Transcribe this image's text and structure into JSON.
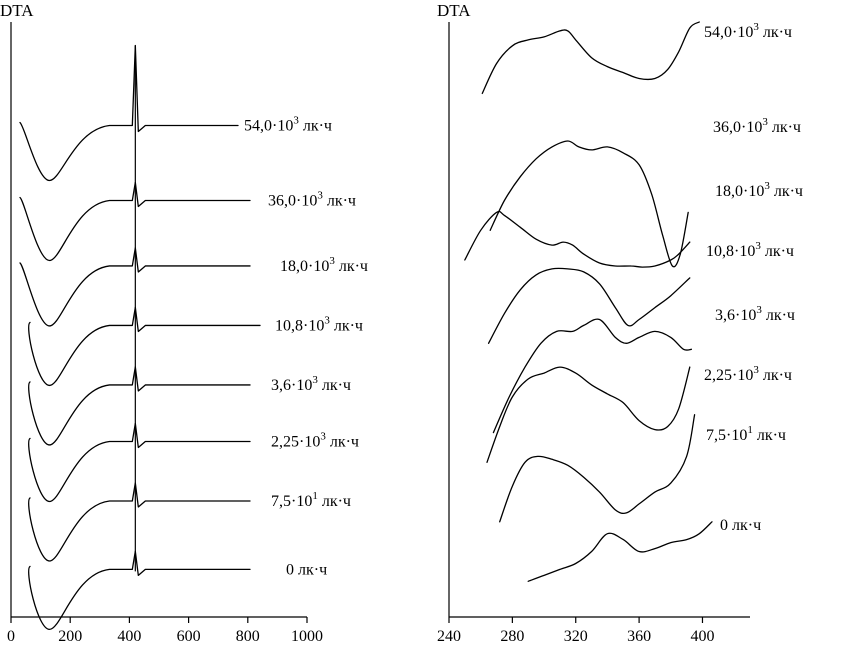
{
  "chart_data": [
    {
      "type": "line",
      "ylabel": "DTA",
      "xlabel": "",
      "xlim": [
        0,
        1000
      ],
      "xticks": [
        "0",
        "200",
        "400",
        "600",
        "800",
        "1000"
      ],
      "xtick_values": [
        0,
        200,
        400,
        600,
        800,
        1000
      ],
      "series": [
        {
          "label_main": "54,0·10",
          "exp": "3",
          "unit": " лк·ч",
          "baseline": 0.826
        },
        {
          "label_main": "36,0·10",
          "exp": "3",
          "unit": " лк·ч",
          "baseline": 0.7
        },
        {
          "label_main": "18,0·10",
          "exp": "3",
          "unit": " лк·ч",
          "baseline": 0.59
        },
        {
          "label_main": "10,8·10",
          "exp": "3",
          "unit": " лк·ч",
          "baseline": 0.49
        },
        {
          "label_main": "3,6·10",
          "exp": "3",
          "unit": " лк·ч",
          "baseline": 0.39
        },
        {
          "label_main": "2,25·10",
          "exp": "3",
          "unit": " лк·ч",
          "baseline": 0.295
        },
        {
          "label_main": "7,5·10",
          "exp": "1",
          "unit": " лк·ч",
          "baseline": 0.195
        },
        {
          "label_main": "0",
          "exp": "",
          "unit": " лк·ч",
          "baseline": 0.08
        }
      ],
      "features": {
        "endotherm_x": 130,
        "sharp_exotherm_x": 420
      }
    },
    {
      "type": "line",
      "ylabel": "DTA",
      "xlabel": "",
      "xlim": [
        240,
        430
      ],
      "xticks": [
        "240",
        "280",
        "320",
        "360",
        "400"
      ],
      "xtick_values": [
        240,
        280,
        320,
        360,
        400
      ],
      "series": [
        {
          "label_main": "54,0·10",
          "exp": "3",
          "unit": " лк·ч",
          "x": [
            261,
            270,
            280,
            290,
            300,
            310,
            315,
            320,
            330,
            340,
            350,
            360,
            370,
            378,
            385,
            392,
            398
          ],
          "y": [
            0.88,
            0.93,
            0.96,
            0.97,
            0.975,
            0.985,
            0.985,
            0.97,
            0.94,
            0.925,
            0.915,
            0.905,
            0.905,
            0.92,
            0.95,
            0.99,
            1.0
          ]
        },
        {
          "label_main": "36,0·10",
          "exp": "3",
          "unit": " лк·ч",
          "x": [
            266,
            275,
            285,
            295,
            305,
            315,
            322,
            330,
            340,
            350,
            360,
            368,
            375,
            381,
            386,
            391
          ],
          "y": [
            0.65,
            0.7,
            0.74,
            0.77,
            0.79,
            0.8,
            0.79,
            0.785,
            0.79,
            0.78,
            0.76,
            0.71,
            0.64,
            0.59,
            0.61,
            0.68
          ]
        },
        {
          "label_main": "18,0·10",
          "exp": "3",
          "unit": " лк·ч",
          "x": [
            250,
            260,
            270,
            275,
            285,
            295,
            305,
            312,
            318,
            325,
            335,
            345,
            355,
            362,
            370,
            380,
            385,
            392
          ],
          "y": [
            0.6,
            0.65,
            0.68,
            0.675,
            0.655,
            0.635,
            0.625,
            0.63,
            0.625,
            0.61,
            0.595,
            0.59,
            0.59,
            0.588,
            0.59,
            0.6,
            0.61,
            0.63
          ]
        },
        {
          "label_main": "10,8·10",
          "exp": "3",
          "unit": " лк·ч",
          "x": [
            265,
            275,
            285,
            295,
            305,
            315,
            325,
            335,
            345,
            353,
            360,
            370,
            380,
            392
          ],
          "y": [
            0.46,
            0.51,
            0.55,
            0.575,
            0.585,
            0.585,
            0.58,
            0.56,
            0.52,
            0.49,
            0.5,
            0.52,
            0.54,
            0.57
          ]
        },
        {
          "label_main": "3,6·10",
          "exp": "3",
          "unit": " лк·ч",
          "x": [
            268,
            278,
            288,
            298,
            308,
            318,
            325,
            335,
            345,
            352,
            360,
            370,
            380,
            388,
            393
          ],
          "y": [
            0.31,
            0.37,
            0.42,
            0.46,
            0.48,
            0.48,
            0.49,
            0.5,
            0.47,
            0.46,
            0.47,
            0.48,
            0.47,
            0.45,
            0.45
          ]
        },
        {
          "label_main": "2,25·10",
          "exp": "3",
          "unit": " лк·ч",
          "x": [
            264,
            272,
            280,
            290,
            300,
            310,
            320,
            330,
            340,
            350,
            360,
            370,
            378,
            385,
            392
          ],
          "y": [
            0.26,
            0.32,
            0.37,
            0.4,
            0.41,
            0.42,
            0.41,
            0.39,
            0.375,
            0.36,
            0.33,
            0.315,
            0.32,
            0.35,
            0.42
          ]
        },
        {
          "label_main": "7,5·10",
          "exp": "1",
          "unit": " лк·ч",
          "x": [
            272,
            280,
            288,
            296,
            305,
            315,
            325,
            335,
            345,
            352,
            360,
            370,
            380,
            390,
            395
          ],
          "y": [
            0.16,
            0.22,
            0.26,
            0.27,
            0.265,
            0.255,
            0.235,
            0.21,
            0.18,
            0.175,
            0.19,
            0.21,
            0.225,
            0.27,
            0.34
          ]
        },
        {
          "label_main": "0",
          "exp": "",
          "unit": " лк·ч",
          "x": [
            290,
            300,
            310,
            320,
            330,
            340,
            350,
            360,
            370,
            380,
            390,
            398,
            406
          ],
          "y": [
            0.06,
            0.07,
            0.08,
            0.09,
            0.11,
            0.14,
            0.13,
            0.11,
            0.115,
            0.125,
            0.13,
            0.14,
            0.16
          ]
        }
      ]
    }
  ]
}
